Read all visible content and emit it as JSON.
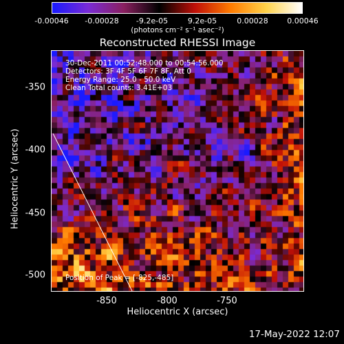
{
  "colorbar": {
    "ticks": [
      "-0.00046",
      "-0.00028",
      "-9.2e-05",
      "9.2e-05",
      "0.00028",
      "0.00046"
    ],
    "units": "(photons cm⁻² s⁻¹ asec⁻²)",
    "colors": [
      "#1a1aff",
      "#7a2bd6",
      "#8a2060",
      "#000000",
      "#c01008",
      "#ff7b00",
      "#ffd34a",
      "#ffffff"
    ]
  },
  "title": "Reconstructed RHESSI Image",
  "info": {
    "time": "30-Dec-2011 00:52:48.000 to 00:54:56.000",
    "detectors": "Detectors: 3F 4F 5F 6F 7F 8F, Att 0",
    "energy": "Energy Range: 25.0 - 50.0 keV",
    "clean": "Clean     Total counts: 3.41E+03",
    "peak": "Position of Peak = [-825,-485]"
  },
  "axes": {
    "xlabel": "Heliocentric X (arcsec)",
    "ylabel": "Heliocentric Y (arcsec)",
    "xticks": [
      "-850",
      "-800",
      "-750"
    ],
    "yticks": [
      "-350",
      "-400",
      "-450",
      "-500"
    ]
  },
  "datestamp": "17-May-2022 12:07"
}
